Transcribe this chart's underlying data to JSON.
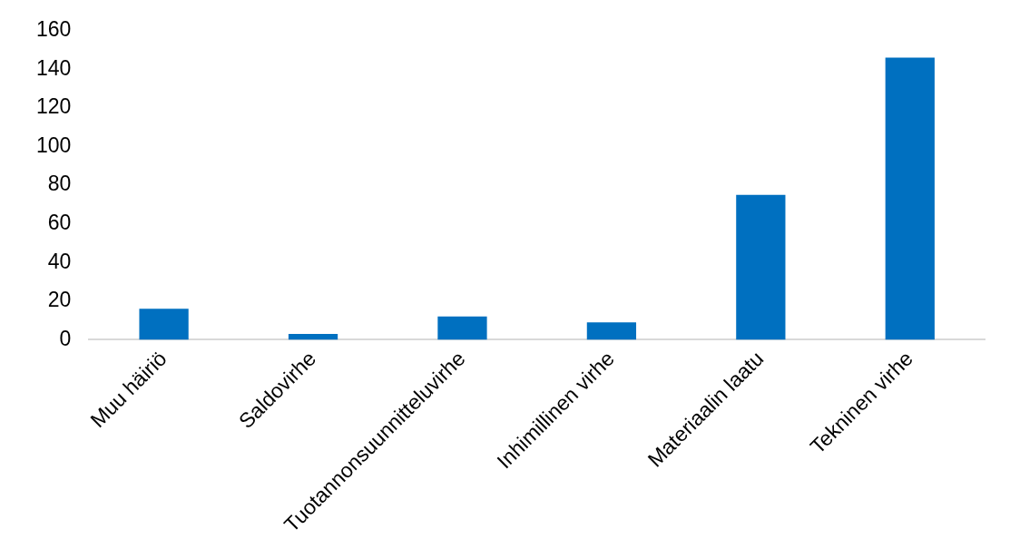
{
  "chart_data": {
    "type": "bar",
    "categories": [
      "Muu häiriö",
      "Saldovirhe",
      "Tuotannonsuunnitteluvirhe",
      "Inhimillinen virhe",
      "Materiaalin laatu",
      "Tekninen virhe"
    ],
    "values": [
      16,
      3,
      12,
      9,
      75,
      146
    ],
    "color": "#0070c0",
    "ylim": [
      0,
      160
    ],
    "yticks": [
      0,
      20,
      40,
      60,
      80,
      100,
      120,
      140,
      160
    ],
    "grid": false,
    "legend": false
  }
}
